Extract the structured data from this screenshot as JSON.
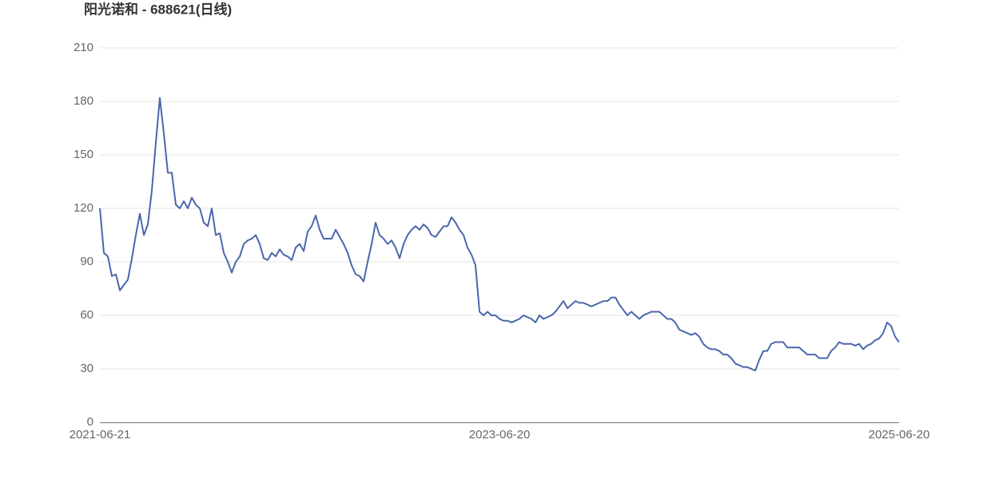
{
  "chart_data": {
    "type": "line",
    "title": "阳光诺和 - 688621(日线)",
    "categories": [
      "2021-06-21",
      null,
      null,
      null,
      null,
      null,
      null,
      null,
      null,
      null,
      null,
      null,
      null,
      null,
      null,
      null,
      null,
      null,
      null,
      null,
      null,
      null,
      null,
      null,
      null,
      null,
      null,
      null,
      null,
      null,
      null,
      null,
      null,
      null,
      null,
      null,
      null,
      null,
      null,
      null,
      null,
      null,
      null,
      null,
      null,
      null,
      null,
      null,
      null,
      null,
      null,
      null,
      null,
      null,
      null,
      null,
      null,
      null,
      null,
      null,
      null,
      null,
      null,
      null,
      null,
      null,
      null,
      null,
      null,
      null,
      null,
      null,
      null,
      null,
      null,
      null,
      null,
      null,
      null,
      null,
      null,
      null,
      null,
      null,
      null,
      null,
      null,
      null,
      null,
      null,
      null,
      null,
      null,
      null,
      null,
      null,
      null,
      null,
      null,
      null,
      "2023-06-20",
      null,
      null,
      null,
      null,
      null,
      null,
      null,
      null,
      null,
      null,
      null,
      null,
      null,
      null,
      null,
      null,
      null,
      null,
      null,
      null,
      null,
      null,
      null,
      null,
      null,
      null,
      null,
      null,
      null,
      null,
      null,
      null,
      null,
      null,
      null,
      null,
      null,
      null,
      null,
      null,
      null,
      null,
      null,
      null,
      null,
      null,
      null,
      null,
      null,
      null,
      null,
      null,
      null,
      null,
      null,
      null,
      null,
      null,
      null,
      null,
      null,
      null,
      null,
      null,
      null,
      null,
      null,
      null,
      null,
      null,
      null,
      null,
      null,
      null,
      null,
      null,
      null,
      null,
      null,
      null,
      null,
      null,
      null,
      null,
      null,
      null,
      null,
      null,
      null,
      null,
      null,
      null,
      null,
      null,
      null,
      null,
      null,
      null,
      null,
      "2025-06-20"
    ],
    "series": [
      {
        "color": "#4a67ad",
        "values": [
          120,
          95,
          93,
          82,
          83,
          74,
          77,
          80,
          92,
          105,
          117,
          105,
          111,
          130,
          157,
          182,
          162,
          140,
          140,
          122,
          120,
          124,
          120,
          126,
          122,
          120,
          112,
          110,
          120,
          105,
          106,
          95,
          90,
          84,
          90,
          93,
          100,
          102,
          103,
          105,
          100,
          92,
          91,
          95,
          93,
          97,
          94,
          93,
          91,
          98,
          100,
          96,
          107,
          110,
          116,
          108,
          103,
          103,
          103,
          108,
          104,
          100,
          95,
          88,
          83,
          82,
          79,
          90,
          100,
          112,
          105,
          103,
          100,
          102,
          98,
          92,
          100,
          105,
          108,
          110,
          108,
          111,
          109,
          105,
          104,
          107,
          110,
          110,
          115,
          112,
          108,
          105,
          98,
          94,
          88,
          62,
          60,
          62,
          60,
          60,
          58,
          57,
          57,
          56,
          57,
          58,
          60,
          59,
          58,
          56,
          60,
          58,
          59,
          60,
          62,
          65,
          68,
          64,
          66,
          68,
          67,
          67,
          66,
          65,
          66,
          67,
          68,
          68,
          70,
          70,
          66,
          63,
          60,
          62,
          60,
          58,
          60,
          61,
          62,
          62,
          62,
          60,
          58,
          58,
          56,
          52,
          51,
          50,
          49,
          50,
          48,
          44,
          42,
          41,
          41,
          40,
          38,
          38,
          36,
          33,
          32,
          31,
          31,
          30,
          29,
          35,
          40,
          40,
          44,
          45,
          45,
          45,
          42,
          42,
          42,
          42,
          40,
          38,
          38,
          38,
          36,
          36,
          36,
          40,
          42,
          45,
          44,
          44,
          44,
          43,
          44,
          41,
          43,
          44,
          46,
          47,
          50,
          56,
          54,
          48,
          45
        ]
      }
    ],
    "ylim": [
      0,
      210
    ],
    "yticks": [
      0,
      30,
      60,
      90,
      120,
      150,
      180,
      210
    ],
    "grid": true
  }
}
